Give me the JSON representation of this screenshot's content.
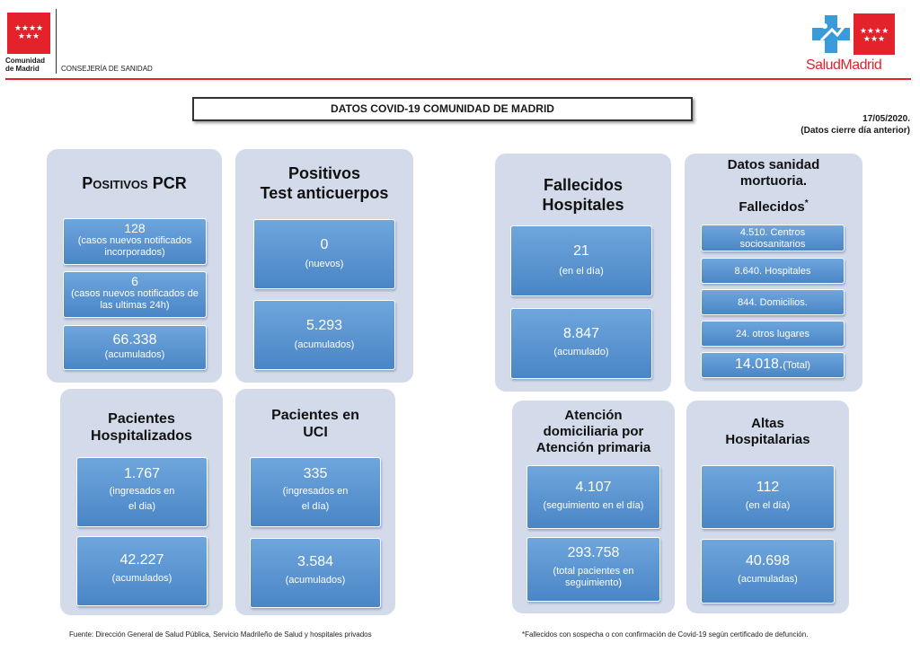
{
  "header": {
    "logo_stars": "★★★★\n★★★",
    "cm_name_line1": "Comunidad",
    "cm_name_line2": "de Madrid",
    "department": "CONSEJERÍA DE SANIDAD",
    "salud_brand": "SaludMadrid"
  },
  "title": "DATOS COVID-19 COMUNIDAD DE MADRID",
  "date": "17/05/2020.",
  "date_note": "(Datos cierre día anterior)",
  "pcr": {
    "title": "Positivos PCR",
    "cards": [
      {
        "num": "128",
        "sub": "(casos nuevos notificados incorporados)"
      },
      {
        "num": "6",
        "sub": "(casos nuevos notificados de las ultimas 24h)"
      },
      {
        "num": "66.338",
        "sub": "(acumulados)"
      }
    ]
  },
  "anticuerpos": {
    "title_line1": "Positivos",
    "title_line2": "Test anticuerpos",
    "cards": [
      {
        "num": "0",
        "sub": "(nuevos)"
      },
      {
        "num": "5.293",
        "sub": "(acumulados)"
      }
    ]
  },
  "hospitalizados": {
    "title_line1": "Pacientes",
    "title_line2": "Hospitalizados",
    "cards": [
      {
        "num": "1.767",
        "sub1": "(ingresados en",
        "sub2": "el dia)"
      },
      {
        "num": "42.227",
        "sub": "(acumulados)"
      }
    ]
  },
  "uci": {
    "title_line1": "Pacientes en",
    "title_line2": "UCI",
    "cards": [
      {
        "num": "335",
        "sub1": "(ingresados en",
        "sub2": "el día)"
      },
      {
        "num": "3.584",
        "sub": "(acumulados)"
      }
    ]
  },
  "fallecidos_hosp": {
    "title_line1": "Fallecidos",
    "title_line2": "Hospitales",
    "cards": [
      {
        "num": "21",
        "sub": "(en el día)"
      },
      {
        "num": "8.847",
        "sub": "(acumulado)"
      }
    ]
  },
  "mortuoria": {
    "title_line1": "Datos sanidad",
    "title_line2": "mortuoria.",
    "title_line3": "Fallecidos",
    "asterisk": "*",
    "items": [
      {
        "text1": "4.510. Centros",
        "text2": "sociosanitarios"
      },
      {
        "text": "8.640. Hospitales"
      },
      {
        "text": "844. Domicilios."
      },
      {
        "text": "24. otros lugares"
      }
    ],
    "total_num": "14.018.",
    "total_label": "(Total)"
  },
  "atencion": {
    "title_line1": "Atención",
    "title_line2": "domiciliaria por",
    "title_line3": "Atención primaria",
    "cards": [
      {
        "num": "4.107",
        "sub": "(seguimiento en el día)"
      },
      {
        "num": "293.758",
        "sub1": "(total pacientes en",
        "sub2": "seguimiento)"
      }
    ]
  },
  "altas": {
    "title_line1": "Altas",
    "title_line2": "Hospitalarias",
    "cards": [
      {
        "num": "112",
        "sub": "(en el día)"
      },
      {
        "num": "40.698",
        "sub": "(acumuladas)"
      }
    ]
  },
  "footer": {
    "source": "Fuente: Dirección General de Salud Pública, Servicio Madrileño de Salud y hospitales privados",
    "note": "*Fallecidos con sospecha o con confirmación de Covid-19 según certificado de defunción."
  },
  "colors": {
    "brand_red": "#e3222b",
    "panel_bg": "#d3dbeb",
    "card_blue": "#5a95d2",
    "cross_blue": "#3a9bd8"
  }
}
